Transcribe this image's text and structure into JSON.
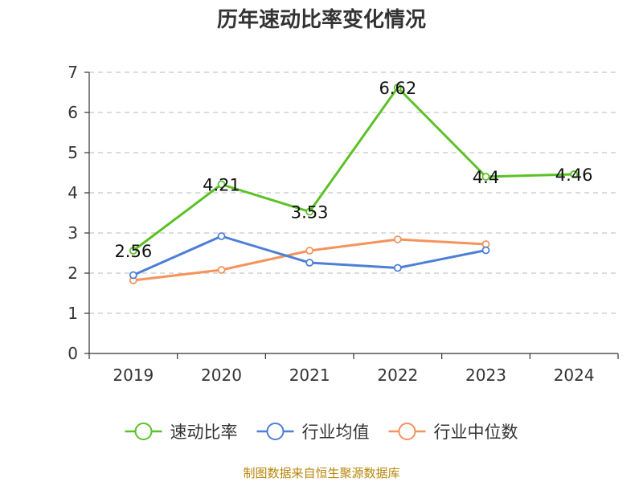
{
  "chart_data": {
    "type": "line",
    "title": "历年速动比率变化情况",
    "categories": [
      "2019",
      "2020",
      "2021",
      "2022",
      "2023",
      "2024"
    ],
    "yticks": [
      "0",
      "1",
      "2",
      "3",
      "4",
      "5",
      "6",
      "7"
    ],
    "ylim": [
      0,
      7
    ],
    "grid": true,
    "legend_position": "bottom",
    "series": [
      {
        "name": "速动比率",
        "color": "#5cc127",
        "values": [
          2.56,
          4.21,
          3.53,
          6.62,
          4.4,
          4.46
        ],
        "labels": [
          "2.56",
          "4.21",
          "3.53",
          "6.62",
          "4.4",
          "4.46"
        ]
      },
      {
        "name": "行业均值",
        "color": "#4e7fd6",
        "values": [
          1.95,
          2.92,
          2.26,
          2.13,
          2.57,
          null
        ]
      },
      {
        "name": "行业中位数",
        "color": "#f4935c",
        "values": [
          1.82,
          2.08,
          2.56,
          2.84,
          2.72,
          null
        ]
      }
    ]
  },
  "source": "制图数据来自恒生聚源数据库"
}
